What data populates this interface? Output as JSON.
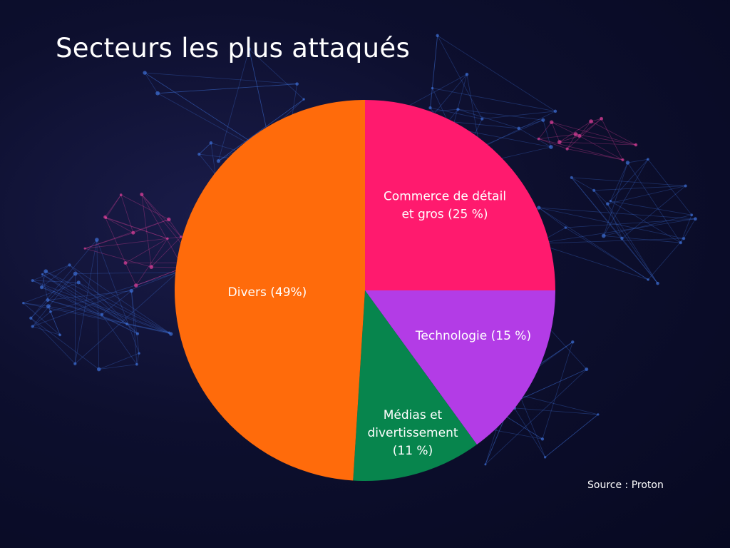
{
  "title": "Secteurs les plus attaqués",
  "source": "Source : Proton",
  "colors": {
    "background": "#0a0c2a",
    "network_blue": "#3d6fd6",
    "network_pink": "#e0409a"
  },
  "chart_data": {
    "type": "pie",
    "start_angle_deg": 0,
    "direction": "clockwise",
    "slices": [
      {
        "label_lines": [
          "Commerce de détail",
          "et gros (25 %)"
        ],
        "value": 25,
        "color": "#ff1a6e"
      },
      {
        "label_lines": [
          "Technologie (15 %)"
        ],
        "value": 15,
        "color": "#b33ce6"
      },
      {
        "label_lines": [
          "Médias et",
          "divertissement",
          "(11 %)"
        ],
        "value": 11,
        "color": "#07854d"
      },
      {
        "label_lines": [
          "Divers (49%)"
        ],
        "value": 49,
        "color": "#ff6b0b"
      }
    ]
  }
}
